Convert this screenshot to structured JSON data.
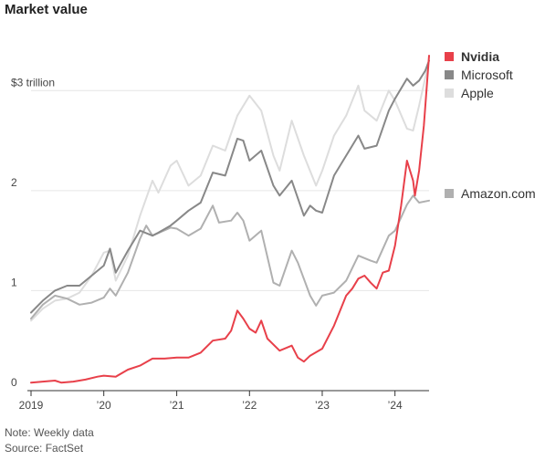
{
  "chart_data": {
    "type": "line",
    "title": "Market value",
    "xlabel": "",
    "ylabel": "",
    "ylim": [
      0,
      3.45
    ],
    "xlim": [
      "2019-01-01",
      "2024-06-20"
    ],
    "grid": true,
    "legend": "right",
    "y_ticks": [
      {
        "value": 0,
        "label": "0"
      },
      {
        "value": 1,
        "label": "1"
      },
      {
        "value": 2,
        "label": "2"
      },
      {
        "value": 3,
        "label": "$3 trillion"
      }
    ],
    "x_ticks": [
      {
        "value": "2019-01-01",
        "label": "2019"
      },
      {
        "value": "2020-01-01",
        "label": "’20"
      },
      {
        "value": "2021-01-01",
        "label": "’21"
      },
      {
        "value": "2022-01-01",
        "label": "’22"
      },
      {
        "value": "2023-01-01",
        "label": "’23"
      },
      {
        "value": "2024-01-01",
        "label": "’24"
      }
    ],
    "series": [
      {
        "name": "Apple",
        "color": "#dddddd",
        "points": [
          [
            "2019-01-01",
            0.7
          ],
          [
            "2019-03-01",
            0.82
          ],
          [
            "2019-05-01",
            0.9
          ],
          [
            "2019-07-01",
            0.92
          ],
          [
            "2019-09-01",
            0.98
          ],
          [
            "2019-11-01",
            1.15
          ],
          [
            "2020-01-01",
            1.38
          ],
          [
            "2020-02-01",
            1.4
          ],
          [
            "2020-03-01",
            1.1
          ],
          [
            "2020-05-01",
            1.35
          ],
          [
            "2020-07-01",
            1.75
          ],
          [
            "2020-09-01",
            2.1
          ],
          [
            "2020-10-01",
            1.98
          ],
          [
            "2020-12-01",
            2.25
          ],
          [
            "2021-01-01",
            2.3
          ],
          [
            "2021-03-01",
            2.05
          ],
          [
            "2021-05-01",
            2.15
          ],
          [
            "2021-07-01",
            2.45
          ],
          [
            "2021-09-01",
            2.4
          ],
          [
            "2021-11-01",
            2.75
          ],
          [
            "2022-01-01",
            2.95
          ],
          [
            "2022-03-01",
            2.8
          ],
          [
            "2022-05-01",
            2.35
          ],
          [
            "2022-06-01",
            2.2
          ],
          [
            "2022-08-01",
            2.7
          ],
          [
            "2022-10-01",
            2.35
          ],
          [
            "2022-12-01",
            2.05
          ],
          [
            "2023-01-01",
            2.2
          ],
          [
            "2023-03-01",
            2.55
          ],
          [
            "2023-05-01",
            2.75
          ],
          [
            "2023-07-01",
            3.05
          ],
          [
            "2023-08-01",
            2.8
          ],
          [
            "2023-10-01",
            2.7
          ],
          [
            "2023-12-01",
            3.0
          ],
          [
            "2024-01-01",
            2.9
          ],
          [
            "2024-03-01",
            2.62
          ],
          [
            "2024-04-01",
            2.6
          ],
          [
            "2024-05-01",
            2.85
          ],
          [
            "2024-06-20",
            3.3
          ]
        ]
      },
      {
        "name": "Amazon.com",
        "color": "#b0b0b0",
        "points": [
          [
            "2019-01-01",
            0.72
          ],
          [
            "2019-03-01",
            0.86
          ],
          [
            "2019-05-01",
            0.95
          ],
          [
            "2019-07-01",
            0.92
          ],
          [
            "2019-09-01",
            0.86
          ],
          [
            "2019-11-01",
            0.88
          ],
          [
            "2020-01-01",
            0.93
          ],
          [
            "2020-02-01",
            1.02
          ],
          [
            "2020-03-01",
            0.95
          ],
          [
            "2020-05-01",
            1.18
          ],
          [
            "2020-07-01",
            1.52
          ],
          [
            "2020-08-01",
            1.65
          ],
          [
            "2020-09-01",
            1.55
          ],
          [
            "2020-12-01",
            1.63
          ],
          [
            "2021-01-01",
            1.62
          ],
          [
            "2021-03-01",
            1.55
          ],
          [
            "2021-05-01",
            1.62
          ],
          [
            "2021-07-01",
            1.85
          ],
          [
            "2021-08-01",
            1.68
          ],
          [
            "2021-10-01",
            1.7
          ],
          [
            "2021-11-01",
            1.78
          ],
          [
            "2021-12-01",
            1.7
          ],
          [
            "2022-01-01",
            1.5
          ],
          [
            "2022-03-01",
            1.6
          ],
          [
            "2022-05-01",
            1.08
          ],
          [
            "2022-06-01",
            1.05
          ],
          [
            "2022-08-01",
            1.4
          ],
          [
            "2022-09-01",
            1.28
          ],
          [
            "2022-11-01",
            0.95
          ],
          [
            "2022-12-01",
            0.85
          ],
          [
            "2023-01-01",
            0.95
          ],
          [
            "2023-03-01",
            0.98
          ],
          [
            "2023-05-01",
            1.1
          ],
          [
            "2023-07-01",
            1.35
          ],
          [
            "2023-09-01",
            1.3
          ],
          [
            "2023-10-01",
            1.28
          ],
          [
            "2023-12-01",
            1.55
          ],
          [
            "2024-01-01",
            1.6
          ],
          [
            "2024-03-01",
            1.86
          ],
          [
            "2024-04-01",
            1.95
          ],
          [
            "2024-05-01",
            1.88
          ],
          [
            "2024-06-20",
            1.9
          ]
        ]
      },
      {
        "name": "Microsoft",
        "color": "#888888",
        "points": [
          [
            "2019-01-01",
            0.78
          ],
          [
            "2019-03-01",
            0.9
          ],
          [
            "2019-05-01",
            1.0
          ],
          [
            "2019-07-01",
            1.05
          ],
          [
            "2019-09-01",
            1.05
          ],
          [
            "2019-11-01",
            1.15
          ],
          [
            "2020-01-01",
            1.25
          ],
          [
            "2020-02-01",
            1.42
          ],
          [
            "2020-03-01",
            1.18
          ],
          [
            "2020-05-01",
            1.4
          ],
          [
            "2020-07-01",
            1.6
          ],
          [
            "2020-09-01",
            1.55
          ],
          [
            "2020-10-01",
            1.58
          ],
          [
            "2020-12-01",
            1.65
          ],
          [
            "2021-01-01",
            1.7
          ],
          [
            "2021-03-01",
            1.8
          ],
          [
            "2021-05-01",
            1.88
          ],
          [
            "2021-07-01",
            2.18
          ],
          [
            "2021-09-01",
            2.15
          ],
          [
            "2021-11-01",
            2.52
          ],
          [
            "2021-12-01",
            2.5
          ],
          [
            "2022-01-01",
            2.3
          ],
          [
            "2022-03-01",
            2.4
          ],
          [
            "2022-05-01",
            2.05
          ],
          [
            "2022-06-01",
            1.95
          ],
          [
            "2022-08-01",
            2.1
          ],
          [
            "2022-10-01",
            1.75
          ],
          [
            "2022-11-01",
            1.85
          ],
          [
            "2022-12-01",
            1.8
          ],
          [
            "2023-01-01",
            1.78
          ],
          [
            "2023-03-01",
            2.15
          ],
          [
            "2023-05-01",
            2.35
          ],
          [
            "2023-07-01",
            2.55
          ],
          [
            "2023-08-01",
            2.42
          ],
          [
            "2023-10-01",
            2.45
          ],
          [
            "2023-12-01",
            2.8
          ],
          [
            "2024-01-01",
            2.92
          ],
          [
            "2024-03-01",
            3.12
          ],
          [
            "2024-04-01",
            3.05
          ],
          [
            "2024-05-01",
            3.1
          ],
          [
            "2024-06-01",
            3.2
          ],
          [
            "2024-06-20",
            3.3
          ]
        ]
      },
      {
        "name": "Nvidia",
        "color": "#e8404a",
        "points": [
          [
            "2019-01-01",
            0.08
          ],
          [
            "2019-03-01",
            0.09
          ],
          [
            "2019-05-01",
            0.1
          ],
          [
            "2019-06-01",
            0.08
          ],
          [
            "2019-08-01",
            0.09
          ],
          [
            "2019-10-01",
            0.11
          ],
          [
            "2019-12-01",
            0.14
          ],
          [
            "2020-01-01",
            0.15
          ],
          [
            "2020-03-01",
            0.14
          ],
          [
            "2020-05-01",
            0.21
          ],
          [
            "2020-07-01",
            0.25
          ],
          [
            "2020-09-01",
            0.32
          ],
          [
            "2020-11-01",
            0.32
          ],
          [
            "2021-01-01",
            0.33
          ],
          [
            "2021-03-01",
            0.33
          ],
          [
            "2021-05-01",
            0.38
          ],
          [
            "2021-07-01",
            0.5
          ],
          [
            "2021-09-01",
            0.52
          ],
          [
            "2021-10-01",
            0.6
          ],
          [
            "2021-11-01",
            0.8
          ],
          [
            "2021-12-01",
            0.72
          ],
          [
            "2022-01-01",
            0.62
          ],
          [
            "2022-02-01",
            0.58
          ],
          [
            "2022-03-01",
            0.7
          ],
          [
            "2022-04-01",
            0.52
          ],
          [
            "2022-06-01",
            0.4
          ],
          [
            "2022-08-01",
            0.45
          ],
          [
            "2022-09-01",
            0.33
          ],
          [
            "2022-10-01",
            0.29
          ],
          [
            "2022-11-01",
            0.35
          ],
          [
            "2023-01-01",
            0.42
          ],
          [
            "2023-03-01",
            0.65
          ],
          [
            "2023-05-01",
            0.95
          ],
          [
            "2023-06-01",
            1.02
          ],
          [
            "2023-07-01",
            1.12
          ],
          [
            "2023-08-01",
            1.15
          ],
          [
            "2023-09-01",
            1.08
          ],
          [
            "2023-10-01",
            1.02
          ],
          [
            "2023-11-01",
            1.18
          ],
          [
            "2023-12-01",
            1.2
          ],
          [
            "2024-01-01",
            1.45
          ],
          [
            "2024-02-01",
            1.85
          ],
          [
            "2024-03-01",
            2.3
          ],
          [
            "2024-04-01",
            2.1
          ],
          [
            "2024-04-10",
            1.95
          ],
          [
            "2024-05-01",
            2.2
          ],
          [
            "2024-05-25",
            2.65
          ],
          [
            "2024-06-20",
            3.35
          ]
        ]
      }
    ],
    "legend_entries": [
      {
        "series": "Nvidia",
        "color": "#e8404a",
        "bold": true
      },
      {
        "series": "Microsoft",
        "color": "#888888",
        "bold": false
      },
      {
        "series": "Apple",
        "color": "#dddddd",
        "bold": false
      },
      {
        "series": "Amazon.com",
        "color": "#b0b0b0",
        "bold": false
      }
    ]
  },
  "notes": {
    "note": "Note: Weekly data",
    "source": "Source: FactSet"
  }
}
